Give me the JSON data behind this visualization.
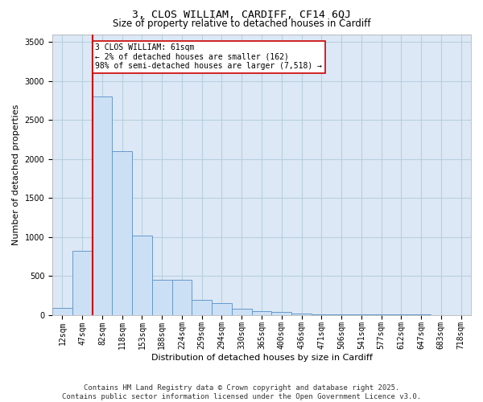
{
  "title_line1": "3, CLOS WILLIAM, CARDIFF, CF14 6QJ",
  "title_line2": "Size of property relative to detached houses in Cardiff",
  "xlabel": "Distribution of detached houses by size in Cardiff",
  "ylabel": "Number of detached properties",
  "categories": [
    "12sqm",
    "47sqm",
    "82sqm",
    "118sqm",
    "153sqm",
    "188sqm",
    "224sqm",
    "259sqm",
    "294sqm",
    "330sqm",
    "365sqm",
    "400sqm",
    "436sqm",
    "471sqm",
    "506sqm",
    "541sqm",
    "577sqm",
    "612sqm",
    "647sqm",
    "683sqm",
    "718sqm"
  ],
  "values": [
    90,
    820,
    2800,
    2100,
    1020,
    450,
    450,
    190,
    145,
    75,
    50,
    38,
    18,
    9,
    5,
    2,
    2,
    1,
    1,
    0,
    0
  ],
  "bar_color": "#cce0f5",
  "bar_edge_color": "#6699cc",
  "vline_color": "#cc0000",
  "annotation_text": "3 CLOS WILLIAM: 61sqm\n← 2% of detached houses are smaller (162)\n98% of semi-detached houses are larger (7,518) →",
  "annotation_box_facecolor": "#ffffff",
  "annotation_box_edgecolor": "#cc0000",
  "ylim": [
    0,
    3600
  ],
  "yticks": [
    0,
    500,
    1000,
    1500,
    2000,
    2500,
    3000,
    3500
  ],
  "plot_bg_color": "#dce8f5",
  "grid_color": "#b8cfe0",
  "footer_line1": "Contains HM Land Registry data © Crown copyright and database right 2025.",
  "footer_line2": "Contains public sector information licensed under the Open Government Licence v3.0.",
  "title1_fontsize": 9.5,
  "title2_fontsize": 8.5,
  "ylabel_fontsize": 8,
  "xlabel_fontsize": 8,
  "tick_fontsize": 7,
  "annot_fontsize": 7,
  "footer_fontsize": 6.5
}
